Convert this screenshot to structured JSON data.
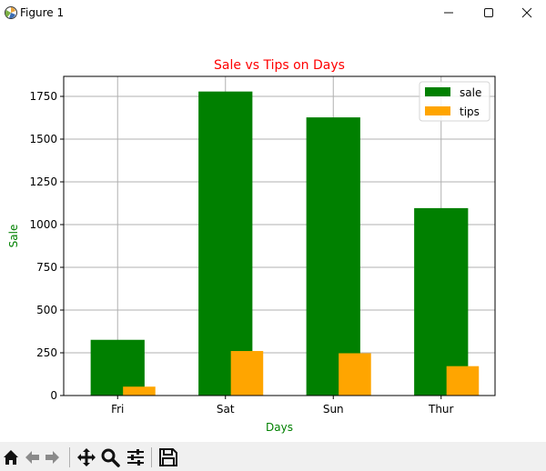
{
  "window": {
    "title": "Figure 1"
  },
  "toolbar": {
    "icons": [
      "home-icon",
      "back-icon",
      "forward-icon",
      "pan-icon",
      "zoom-icon",
      "configure-subplots-icon",
      "save-icon"
    ]
  },
  "colors": {
    "sale": "#008000",
    "tips": "#ffa500",
    "title": "#ff0000",
    "labels": "#008000",
    "grid": "#b0b0b0"
  },
  "chart_data": {
    "type": "bar",
    "title": "Sale vs Tips on Days",
    "xlabel": "Days",
    "ylabel": "Sale",
    "categories": [
      "Fri",
      "Sat",
      "Sun",
      "Thur"
    ],
    "series": [
      {
        "name": "sale",
        "values": [
          325.88,
          1778.4,
          1627.16,
          1096.33
        ]
      },
      {
        "name": "tips",
        "values": [
          51.96,
          260.4,
          247.39,
          171.83
        ]
      }
    ],
    "yticks": [
      0,
      250,
      500,
      750,
      1000,
      1250,
      1500,
      1750
    ],
    "ylim": [
      0,
      1867
    ],
    "grid": true,
    "legend": "top-right"
  }
}
